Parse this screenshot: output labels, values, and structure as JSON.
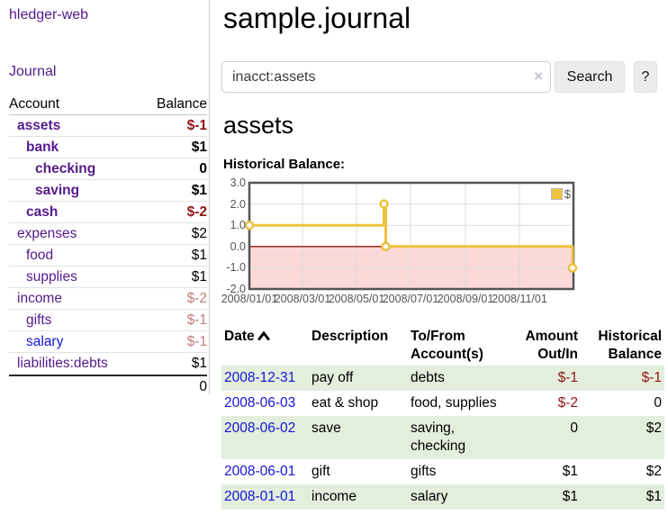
{
  "brand": "hledger-web",
  "colors": {
    "link_purple": "#551a8b",
    "link_blue": "#1414d6",
    "negative_strong": "#901717",
    "negative_muted": "#bf7e7e",
    "row_shade_green": "#e3eedd"
  },
  "sidebar": {
    "journal_link": "Journal",
    "table": {
      "col_account": "Account",
      "col_balance": "Balance",
      "rows": [
        {
          "name": "assets",
          "balance": "$-1",
          "level": 1,
          "bold": true,
          "neg": "strong"
        },
        {
          "name": "bank",
          "balance": "$1",
          "level": 2,
          "bold": true,
          "neg": "none"
        },
        {
          "name": "checking",
          "balance": "0",
          "level": 3,
          "bold": true,
          "neg": "none"
        },
        {
          "name": "saving",
          "balance": "$1",
          "level": 3,
          "bold": true,
          "neg": "none"
        },
        {
          "name": "cash",
          "balance": "$-2",
          "level": 2,
          "bold": true,
          "neg": "strong"
        },
        {
          "name": "expenses",
          "balance": "$2",
          "level": 1,
          "bold": false,
          "neg": "none"
        },
        {
          "name": "food",
          "balance": "$1",
          "level": 2,
          "bold": false,
          "neg": "none"
        },
        {
          "name": "supplies",
          "balance": "$1",
          "level": 2,
          "bold": false,
          "neg": "none"
        },
        {
          "name": "income",
          "balance": "$-2",
          "level": 1,
          "bold": false,
          "neg": "muted"
        },
        {
          "name": "gifts",
          "balance": "$-1",
          "level": 2,
          "bold": false,
          "neg": "muted"
        },
        {
          "name": "salary",
          "balance": "$-1",
          "level": 2,
          "bold": false,
          "neg": "muted",
          "link_color": "blue"
        },
        {
          "name": "liabilities:debts",
          "balance": "$1",
          "level": 1,
          "bold": false,
          "neg": "none"
        }
      ],
      "total": "0"
    }
  },
  "main": {
    "title": "sample.journal",
    "search": {
      "value": "inacct:assets",
      "clear_icon": "×",
      "search_button": "Search",
      "help_button": "?"
    },
    "account_heading": "assets",
    "chart_title": "Historical Balance:"
  },
  "chart_data": {
    "type": "line",
    "step": true,
    "title": "Historical Balance",
    "series": [
      {
        "name": "$",
        "color": "#edc240",
        "points": [
          [
            "2008-01-01",
            1
          ],
          [
            "2008-06-01",
            2
          ],
          [
            "2008-06-02",
            2
          ],
          [
            "2008-06-03",
            0
          ],
          [
            "2008-12-31",
            -1
          ]
        ]
      }
    ],
    "x_range": [
      "2008-01-01",
      "2009-01-01"
    ],
    "ylim": [
      -2,
      3
    ],
    "yticks": [
      "3.0",
      "2.0",
      "1.0",
      "0.0",
      "-1.0",
      "-2.0"
    ],
    "ytick_values": [
      3,
      2,
      1,
      0,
      -1,
      -2
    ],
    "xticks": [
      {
        "label": "2008/01/01",
        "date": "2008-01-01"
      },
      {
        "label": "2008/03/01",
        "date": "2008-03-01"
      },
      {
        "label": "2008/05/01",
        "date": "2008-05-01"
      },
      {
        "label": "2008/07/01",
        "date": "2008-07-01"
      },
      {
        "label": "2008/09/01",
        "date": "2008-09-01"
      },
      {
        "label": "2008/11/01",
        "date": "2008-11-01"
      }
    ],
    "legend_position": "top-right",
    "grid": true,
    "grid_color": "#dcdcdc",
    "border_color": "#545454",
    "negative_fill": "#fbd9d9",
    "zero_line_color": "#8e1515"
  },
  "register": {
    "headers": {
      "date": "Date",
      "sort_icon": "chevron-up",
      "description": "Description",
      "accounts": "To/From Account(s)",
      "amount": "Amount Out/In",
      "balance": "Historical Balance"
    },
    "rows": [
      {
        "date": "2008-12-31",
        "description": "pay off",
        "accounts": "debts",
        "amount": "$-1",
        "amount_neg": true,
        "balance": "$-1",
        "balance_neg": true,
        "shaded": true
      },
      {
        "date": "2008-06-03",
        "description": "eat & shop",
        "accounts": "food, supplies",
        "amount": "$-2",
        "amount_neg": true,
        "balance": "0",
        "balance_neg": false,
        "shaded": false
      },
      {
        "date": "2008-06-02",
        "description": "save",
        "accounts": "saving, checking",
        "amount": "0",
        "amount_neg": false,
        "balance": "$2",
        "balance_neg": false,
        "shaded": true
      },
      {
        "date": "2008-06-01",
        "description": "gift",
        "accounts": "gifts",
        "amount": "$1",
        "amount_neg": false,
        "balance": "$2",
        "balance_neg": false,
        "shaded": false
      },
      {
        "date": "2008-01-01",
        "description": "income",
        "accounts": "salary",
        "amount": "$1",
        "amount_neg": false,
        "balance": "$1",
        "balance_neg": false,
        "shaded": true
      }
    ]
  }
}
